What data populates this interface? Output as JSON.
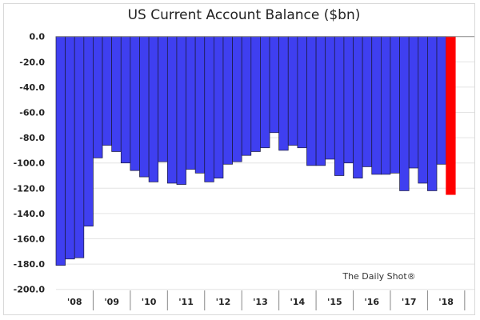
{
  "chart_data": {
    "type": "bar",
    "title": "US Current Account Balance ($bn)",
    "xlabel": "",
    "ylabel": "",
    "ylim": [
      -200,
      0
    ],
    "yticks": [
      "0.0",
      "-20.0",
      "-40.0",
      "-60.0",
      "-80.0",
      "-100.0",
      "-120.0",
      "-140.0",
      "-160.0",
      "-180.0",
      "-200.0"
    ],
    "ytick_values": [
      0,
      -20,
      -40,
      -60,
      -80,
      -100,
      -120,
      -140,
      -160,
      -180,
      -200
    ],
    "xtick_labels": [
      "'08",
      "'09",
      "'10",
      "'11",
      "'12",
      "'13",
      "'14",
      "'15",
      "'16",
      "'17",
      "'18"
    ],
    "grid": true,
    "categories": [
      "2008 Q1",
      "2008 Q2",
      "2008 Q3",
      "2008 Q4",
      "2009 Q1",
      "2009 Q2",
      "2009 Q3",
      "2009 Q4",
      "2010 Q1",
      "2010 Q2",
      "2010 Q3",
      "2010 Q4",
      "2011 Q1",
      "2011 Q2",
      "2011 Q3",
      "2011 Q4",
      "2012 Q1",
      "2012 Q2",
      "2012 Q3",
      "2012 Q4",
      "2013 Q1",
      "2013 Q2",
      "2013 Q3",
      "2013 Q4",
      "2014 Q1",
      "2014 Q2",
      "2014 Q3",
      "2014 Q4",
      "2015 Q1",
      "2015 Q2",
      "2015 Q3",
      "2015 Q4",
      "2016 Q1",
      "2016 Q2",
      "2016 Q3",
      "2016 Q4",
      "2017 Q1",
      "2017 Q2",
      "2017 Q3",
      "2017 Q4",
      "2018 Q1",
      "2018 Q2",
      "2018 Q3"
    ],
    "values": [
      -181,
      -176,
      -175,
      -150,
      -96,
      -86,
      -91,
      -100,
      -106,
      -111,
      -115,
      -99,
      -116,
      -117,
      -105,
      -108,
      -115,
      -112,
      -101,
      -99,
      -94,
      -91,
      -88,
      -76,
      -90,
      -86,
      -88,
      -102,
      -102,
      -97,
      -110,
      -100,
      -112,
      -103,
      -109,
      -109,
      -108,
      -122,
      -104,
      -116,
      -122,
      -101,
      -125
    ],
    "colors": {
      "default": "#3f3ff0",
      "highlight": "#ff0000",
      "outline": "#1a1a3a"
    },
    "highlight_index": 42,
    "annotation": "The Daily Shot®"
  }
}
